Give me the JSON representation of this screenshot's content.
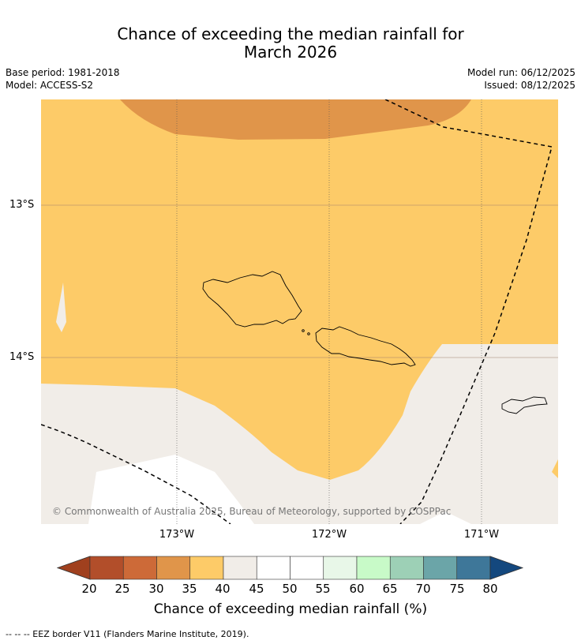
{
  "title": {
    "line1": "Chance of exceeding the median rainfall for",
    "line2": "March 2026"
  },
  "meta": {
    "base_period": "Base period: 1981-2018",
    "model": "Model: ACCESS-S2",
    "model_run": "Model run: 06/12/2025",
    "issued": "Issued: 08/12/2025"
  },
  "map": {
    "lat_labels": [
      "13°S",
      "14°S"
    ],
    "lon_labels": [
      "173°W",
      "172°W",
      "171°W"
    ],
    "copyright": "© Commonwealth of Australia 2025, Bureau of Meteorology, supported by COSPPac",
    "colors": {
      "below_30": "#e0954a",
      "between_35_40": "#fdcb68",
      "between_40_45": "#f1ede8",
      "between_45_55": "#ffffff",
      "eez_border": "#000000",
      "land_outline": "#000000"
    }
  },
  "colorbar": {
    "label": "Chance of exceeding median rainfall (%)",
    "ticks": [
      "20",
      "25",
      "30",
      "35",
      "40",
      "45",
      "50",
      "55",
      "60",
      "65",
      "70",
      "75",
      "80"
    ],
    "colors": [
      "#b24e2a",
      "#cd6a38",
      "#e0954a",
      "#fdcb68",
      "#f1ede8",
      "#ffffff",
      "#ffffff",
      "#e8f7e8",
      "#c8fac8",
      "#9dd0b6",
      "#6ba5a8",
      "#3e7799"
    ],
    "under_color": "#a0401e",
    "over_color": "#14487e"
  },
  "footnote": "--  --  -- EEZ border V11 (Flanders Marine Institute, 2019)."
}
